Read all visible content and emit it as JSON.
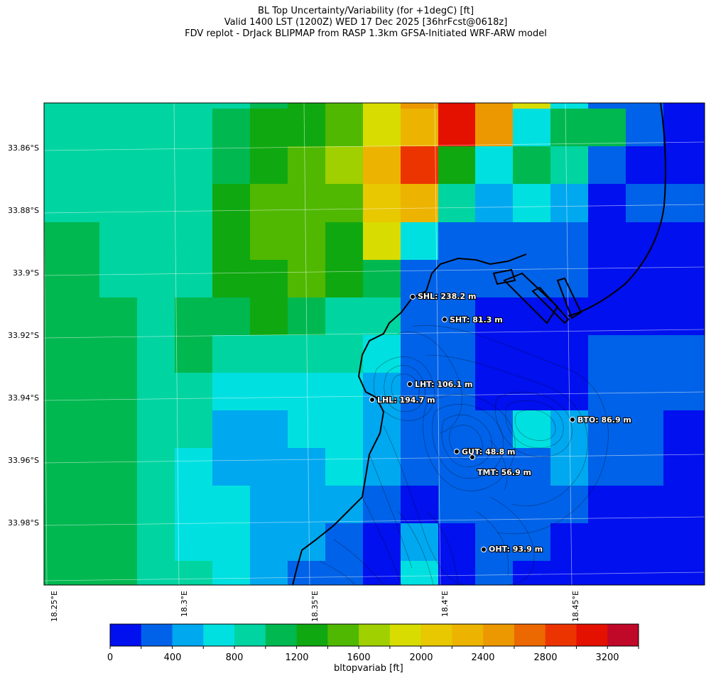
{
  "title": {
    "line1": "BL Top Uncertainty/Variability (for +1degC) [ft]",
    "line2": "Valid 1400 LST (1200Z) WED 17 Dec 2025 [36hrFcst@0618z]",
    "line3": "FDV replot - DrJack BLIPMAP from RASP 1.3km GFSA-Initiated WRF-ARW model"
  },
  "axes": {
    "lat_labels": [
      "33.86°S",
      "33.88°S",
      "33.9°S",
      "33.92°S",
      "33.94°S",
      "33.96°S",
      "33.98°S"
    ],
    "lon_labels": [
      "18.25°E",
      "18.3°E",
      "18.35°E",
      "18.4°E",
      "18.45°E"
    ]
  },
  "colorbar": {
    "label": "bltopvariab [ft]",
    "ticks": [
      "0",
      "400",
      "800",
      "1200",
      "1600",
      "2000",
      "2400",
      "2800",
      "3200"
    ],
    "colors": [
      "#0010ef",
      "#0062e8",
      "#00a8ef",
      "#00e0e0",
      "#00d4a0",
      "#00b850",
      "#10a810",
      "#50b800",
      "#a0d000",
      "#d8dc00",
      "#e8c800",
      "#ecb400",
      "#ec9800",
      "#ec6800",
      "#ec3400",
      "#e41000",
      "#c00828"
    ]
  },
  "stations": [
    {
      "label": "SHL: 238.2 m"
    },
    {
      "label": "SHT: 81.3 m"
    },
    {
      "label": "LHT: 106.1 m"
    },
    {
      "label": "LHL: 194.7 m"
    },
    {
      "label": "BTO: 86.9 m"
    },
    {
      "label": "GUT: 48.8 m"
    },
    {
      "label": "TMT: 56.9 m"
    },
    {
      "label": "OHT: 93.9 m"
    }
  ]
}
